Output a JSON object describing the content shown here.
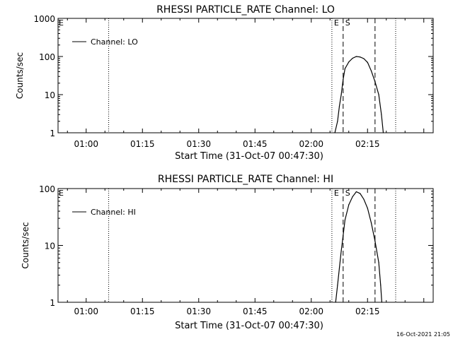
{
  "chart_data": [
    {
      "type": "line",
      "title": "RHESSI PARTICLE_RATE Channel: LO",
      "xlabel": "Start Time (31-Oct-07 00:47:30)",
      "ylabel": "Counts/sec",
      "y_scale": "log",
      "ylim": [
        1,
        1000
      ],
      "y_ticks": [
        1,
        10,
        100,
        1000
      ],
      "y_tick_labels": [
        "1",
        "10",
        "100",
        "1000"
      ],
      "xlim_minutes": [
        -7.5,
        92.5
      ],
      "x_ticks": [
        0,
        15,
        30,
        45,
        60,
        75
      ],
      "x_tick_labels": [
        "01:00",
        "01:15",
        "01:30",
        "01:45",
        "02:00",
        "02:15"
      ],
      "legend": {
        "label": "Channel: LO",
        "position": "top-left"
      },
      "dotted_lines_minutes": [
        6,
        65.5,
        82.5
      ],
      "dashed_lines_minutes": [
        68.5,
        77
      ],
      "markers": [
        {
          "text": "E",
          "at_minutes": 65.5
        },
        {
          "text": "S",
          "at_minutes": 68.5
        }
      ],
      "series": [
        {
          "name": "Channel: LO",
          "x": [
            66.3,
            67,
            67.5,
            68,
            68.5,
            69,
            70,
            71,
            72,
            73,
            74,
            75,
            76,
            77,
            78,
            78.7,
            79.2
          ],
          "values": [
            1,
            2,
            5,
            10,
            25,
            48,
            72,
            90,
            100,
            97,
            88,
            70,
            42,
            22,
            10,
            3,
            1
          ]
        }
      ]
    },
    {
      "type": "line",
      "title": "RHESSI PARTICLE_RATE Channel: HI",
      "xlabel": "Start Time (31-Oct-07 00:47:30)",
      "ylabel": "Counts/sec",
      "y_scale": "log",
      "ylim": [
        1,
        100
      ],
      "y_ticks": [
        1,
        10,
        100
      ],
      "y_tick_labels": [
        "1",
        "10",
        "100"
      ],
      "xlim_minutes": [
        -7.5,
        92.5
      ],
      "x_ticks": [
        0,
        15,
        30,
        45,
        60,
        75
      ],
      "x_tick_labels": [
        "01:00",
        "01:15",
        "01:30",
        "01:45",
        "02:00",
        "02:15"
      ],
      "legend": {
        "label": "Channel: HI",
        "position": "top-left"
      },
      "dotted_lines_minutes": [
        6,
        65.5,
        82.5
      ],
      "dashed_lines_minutes": [
        68.5,
        77
      ],
      "markers": [
        {
          "text": "E",
          "at_minutes": 65.5
        },
        {
          "text": "S",
          "at_minutes": 68.5
        }
      ],
      "series": [
        {
          "name": "Channel: HI",
          "x": [
            66.5,
            67,
            67.5,
            68,
            68.5,
            69,
            70,
            71,
            72,
            73,
            74,
            75,
            76,
            77,
            78,
            78.5,
            78.8
          ],
          "values": [
            1,
            2,
            4,
            8,
            15,
            28,
            52,
            72,
            88,
            82,
            65,
            45,
            25,
            12,
            5,
            2,
            1
          ]
        }
      ]
    }
  ],
  "footer": {
    "timestamp": "16-Oct-2021 21:05"
  }
}
